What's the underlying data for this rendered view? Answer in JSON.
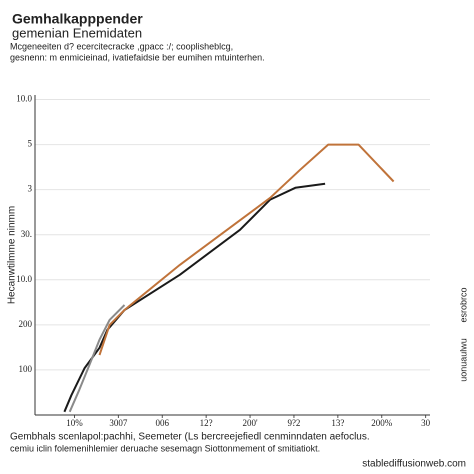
{
  "chart_data": {
    "type": "line",
    "title": "Gemhalkapppender",
    "title_line2": "gemenian Enemidaten",
    "subtitle": "Mcgeneeiten d? ecercitecracke ,gpacc :/; cooplisheblcg,",
    "subtitle_line2": "gesnenn: m enmicieinad, ivatiefaidsie ber eumihen mtuinterhen.",
    "y_label": "Hecanwtilmme ninmm",
    "right_label_1": "esrobrco",
    "right_label_2": "uonuaulwu",
    "footer": "Gembhals scenlapol:pachhi, Seemeter (Ls bercreejefiedl cenminndaten aefoclus.",
    "footer_line2": "cemiu iclin folemenihlemier deruache sesemagn Siottonmement of smitiatiokt.",
    "watermark": "stablediffusionweb.com",
    "xlim": [
      -0.9,
      8.1
    ],
    "xticks": [
      {
        "value": 0,
        "label": "10%"
      },
      {
        "value": 1,
        "label": "3007"
      },
      {
        "value": 2,
        "label": "006"
      },
      {
        "value": 3,
        "label": "12?"
      },
      {
        "value": 4,
        "label": "200'"
      },
      {
        "value": 5,
        "label": "9?2"
      },
      {
        "value": 6,
        "label": "13?"
      },
      {
        "value": 7,
        "label": "200%"
      },
      {
        "value": 8,
        "label": "30"
      }
    ],
    "ylim": [
      0,
      7.1
    ],
    "yticks": [
      {
        "value": 1,
        "label": "100"
      },
      {
        "value": 2,
        "label": "200"
      },
      {
        "value": 3,
        "label": "10.0"
      },
      {
        "value": 4,
        "label": "30."
      },
      {
        "value": 5,
        "label": "3"
      },
      {
        "value": 6,
        "label": "5"
      },
      {
        "value": 7,
        "label": "10.0"
      }
    ],
    "grid": true,
    "series": [
      {
        "color": "#1a1a1a",
        "x": [
          -0.23,
          -0.07,
          0.23,
          0.57,
          0.75,
          1.14,
          2.4,
          3.77,
          4.46,
          5.03,
          5.71
        ],
        "values": [
          0.07,
          0.44,
          1.04,
          1.49,
          1.89,
          2.33,
          3.11,
          4.11,
          4.78,
          5.04,
          5.13
        ]
      },
      {
        "color": "#8a8a8a",
        "x": [
          -0.11,
          0.11,
          0.34,
          0.57,
          0.8,
          1.14
        ],
        "values": [
          0.07,
          0.56,
          1.11,
          1.67,
          2.11,
          2.44
        ]
      },
      {
        "color": "#c0733a",
        "x": [
          0.57,
          0.8,
          1.14,
          2.4,
          4.46,
          5.14,
          5.78,
          6.47,
          7.27
        ],
        "values": [
          1.33,
          2.0,
          2.33,
          3.33,
          4.82,
          5.44,
          6.0,
          6.0,
          5.18
        ]
      }
    ]
  }
}
